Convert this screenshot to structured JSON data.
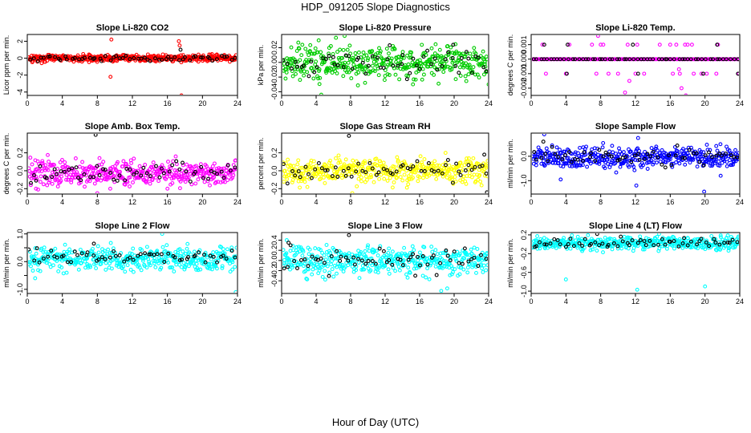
{
  "figure": {
    "title": "HDP_091205  Slope Diagnostics",
    "xlabel": "Hour of Day (UTC)"
  },
  "chart_data": [
    {
      "type": "scatter",
      "title": "Slope Li-820 CO2",
      "ylabel": "Licor ppm per min.",
      "color": "#ff0000",
      "xlim": [
        0,
        24
      ],
      "ylim": [
        -4.4,
        2.8
      ],
      "xticks": [
        0,
        4,
        8,
        12,
        16,
        20,
        24
      ],
      "yticks": [
        -4,
        -2,
        0,
        2
      ],
      "ytick_labels": [
        "-4",
        "-2",
        "0",
        "2"
      ],
      "series_main": {
        "center": 0,
        "spread": 0.2,
        "count": 420
      },
      "series_black": {
        "center": 0,
        "spread": 0.15,
        "count": 60
      },
      "outliers": [
        [
          9.6,
          2.2
        ],
        [
          9.5,
          -2.2
        ],
        [
          17.3,
          2.0
        ],
        [
          17.6,
          -4.4
        ],
        [
          17.4,
          1.5
        ]
      ],
      "black_outliers": [
        [
          17.5,
          1.0
        ]
      ]
    },
    {
      "type": "scatter",
      "title": "Slope Li-820 Pressure",
      "ylabel": "kPa per min.",
      "color": "#00cc00",
      "xlim": [
        0,
        24
      ],
      "ylim": [
        -0.045,
        0.038
      ],
      "xticks": [
        0,
        4,
        8,
        12,
        16,
        20,
        24
      ],
      "yticks": [
        -0.04,
        -0.02,
        0.0,
        0.02
      ],
      "ytick_labels": [
        "-0.04",
        "-0.02",
        "0.00",
        "0.02"
      ],
      "series_main": {
        "center": 0.0,
        "spread": 0.012,
        "count": 420
      },
      "series_black": {
        "center": 0.0,
        "spread": 0.009,
        "count": 60
      },
      "outliers": [
        [
          4.6,
          -0.044
        ],
        [
          7.3,
          0.036
        ],
        [
          4.3,
          0.03
        ],
        [
          24.0,
          -0.03
        ]
      ],
      "black_outliers": [
        [
          19.9,
          0.024
        ]
      ]
    },
    {
      "type": "scatter",
      "title": "Slope Li-820 Temp.",
      "ylabel": "degrees C per min.",
      "color": "#ff00ff",
      "xlim": [
        0,
        24
      ],
      "ylim": [
        -0.0025,
        0.0017
      ],
      "xticks": [
        0,
        4,
        8,
        12,
        16,
        20,
        24
      ],
      "yticks": [
        -0.002,
        -0.001,
        0.0,
        0.001
      ],
      "ytick_labels": [
        "-0.002",
        "-0.001",
        "0.000",
        "0.001"
      ],
      "series_main": {
        "center": 0.0,
        "spread": 0.0,
        "count": 240
      },
      "series_black": {
        "center": 0.0,
        "spread": 0.0,
        "count": 60
      },
      "outliers": [
        [
          7.7,
          0.0016
        ],
        [
          1.3,
          0.001
        ],
        [
          4.4,
          0.001
        ],
        [
          7.0,
          0.001
        ],
        [
          8.0,
          0.001
        ],
        [
          8.3,
          0.001
        ],
        [
          11.1,
          0.001
        ],
        [
          12.2,
          0.001
        ],
        [
          14.8,
          0.001
        ],
        [
          16.0,
          0.001
        ],
        [
          16.7,
          0.001
        ],
        [
          17.7,
          0.001
        ],
        [
          18.0,
          0.001
        ],
        [
          18.5,
          0.001
        ],
        [
          21.5,
          0.001
        ],
        [
          1.7,
          -0.001
        ],
        [
          4.0,
          -0.001
        ],
        [
          7.5,
          -0.001
        ],
        [
          8.9,
          -0.001
        ],
        [
          10.0,
          -0.001
        ],
        [
          12.0,
          -0.001
        ],
        [
          13.0,
          -0.001
        ],
        [
          16.3,
          -0.001
        ],
        [
          17.1,
          -0.001
        ],
        [
          18.7,
          -0.001
        ],
        [
          19.6,
          -0.001
        ],
        [
          20.2,
          -0.001
        ],
        [
          21.3,
          -0.001
        ],
        [
          23.9,
          -0.001
        ],
        [
          11.3,
          -0.0015
        ],
        [
          17.0,
          -0.0007
        ],
        [
          17.3,
          -0.002
        ],
        [
          17.8,
          -0.0025
        ],
        [
          10.8,
          -0.0023
        ]
      ],
      "black_outliers": [
        [
          4.2,
          0.001
        ],
        [
          1.5,
          0.001
        ],
        [
          11.7,
          0.001
        ],
        [
          21.4,
          0.001
        ],
        [
          4.1,
          -0.001
        ],
        [
          12.3,
          -0.001
        ],
        [
          19.8,
          -0.001
        ],
        [
          23.8,
          -0.001
        ]
      ]
    },
    {
      "type": "scatter",
      "title": "Slope Amb. Box Temp.",
      "ylabel": "degrees C per min.",
      "color": "#ff00ff",
      "xlim": [
        0,
        24
      ],
      "ylim": [
        -0.26,
        0.42
      ],
      "xticks": [
        0,
        4,
        8,
        12,
        16,
        20,
        24
      ],
      "yticks": [
        -0.2,
        0.0,
        0.2
      ],
      "ytick_labels": [
        "-0.2",
        "0.0",
        "0.2"
      ],
      "series_main": {
        "center": -0.02,
        "spread": 0.07,
        "count": 420
      },
      "series_black": {
        "center": -0.02,
        "spread": 0.06,
        "count": 60
      },
      "outliers": [
        [
          1.0,
          -0.2
        ],
        [
          16.0,
          -0.2
        ],
        [
          8.0,
          -0.25
        ]
      ],
      "black_outliers": [
        [
          7.8,
          0.4
        ]
      ]
    },
    {
      "type": "scatter",
      "title": "Slope Gas Stream RH",
      "ylabel": "percent per min.",
      "color": "#ffff00",
      "xlim": [
        0,
        24
      ],
      "ylim": [
        -0.26,
        0.42
      ],
      "xticks": [
        0,
        4,
        8,
        12,
        16,
        20,
        24
      ],
      "yticks": [
        -0.2,
        0.0,
        0.2
      ],
      "ytick_labels": [
        "-0.2",
        "0.0",
        "0.2"
      ],
      "series_main": {
        "center": 0.0,
        "spread": 0.07,
        "count": 420
      },
      "series_black": {
        "center": 0.0,
        "spread": 0.06,
        "count": 60
      },
      "outliers": [
        [
          8.2,
          -0.25
        ],
        [
          19.0,
          0.2
        ]
      ],
      "black_outliers": [
        [
          7.8,
          0.39
        ],
        [
          23.8,
          -0.24
        ],
        [
          23.5,
          0.18
        ]
      ]
    },
    {
      "type": "scatter",
      "title": "Slope Sample Flow",
      "ylabel": "ml/min per min.",
      "color": "#0000ff",
      "xlim": [
        0,
        24
      ],
      "ylim": [
        -1.55,
        0.95
      ],
      "xticks": [
        0,
        4,
        8,
        12,
        16,
        20,
        24
      ],
      "yticks": [
        -1.0,
        0.0
      ],
      "ytick_labels": [
        "-1.0",
        "0.0"
      ],
      "series_main": {
        "center": -0.05,
        "spread": 0.22,
        "count": 420
      },
      "series_black": {
        "center": 0.0,
        "spread": 0.18,
        "count": 60
      },
      "outliers": [
        [
          1.5,
          0.9
        ],
        [
          3.4,
          -0.95
        ],
        [
          12.1,
          -1.2
        ],
        [
          19.9,
          -1.45
        ],
        [
          12.3,
          0.75
        ],
        [
          21.8,
          -0.8
        ]
      ],
      "black_outliers": [
        [
          1.4,
          0.6
        ]
      ]
    },
    {
      "type": "scatter",
      "title": "Slope Line 2 Flow",
      "ylabel": "ml/min per min.",
      "color": "#00ffff",
      "xlim": [
        0,
        24
      ],
      "ylim": [
        -1.15,
        1.05
      ],
      "xticks": [
        0,
        4,
        8,
        12,
        16,
        20,
        24
      ],
      "yticks": [
        -1.0,
        -0.5,
        0.0,
        0.5,
        1.0
      ],
      "ytick_labels": [
        "-1.0",
        "",
        "0.0",
        "",
        "1.0"
      ],
      "series_main": {
        "center": 0.1,
        "spread": 0.22,
        "count": 420
      },
      "series_black": {
        "center": 0.15,
        "spread": 0.12,
        "count": 60
      },
      "outliers": [
        [
          15.4,
          1.0
        ],
        [
          23.8,
          -1.1
        ],
        [
          0.9,
          -0.6
        ],
        [
          4.5,
          -0.4
        ]
      ],
      "black_outliers": [
        [
          7.6,
          0.65
        ]
      ]
    },
    {
      "type": "scatter",
      "title": "Slope Line 3 Flow",
      "ylabel": "ml/min per min.",
      "color": "#00ffff",
      "xlim": [
        0,
        24
      ],
      "ylim": [
        -0.65,
        0.55
      ],
      "xticks": [
        0,
        4,
        8,
        12,
        16,
        20,
        24
      ],
      "yticks": [
        -0.4,
        -0.2,
        0.0,
        0.2,
        0.4
      ],
      "ytick_labels": [
        "-0.4",
        "-0.2",
        "0.0",
        "0.2",
        "0.4"
      ],
      "series_main": {
        "center": 0.0,
        "spread": 0.14,
        "count": 420
      },
      "series_black": {
        "center": 0.0,
        "spread": 0.12,
        "count": 60
      },
      "outliers": [
        [
          18.5,
          -0.6
        ],
        [
          19.2,
          -0.55
        ],
        [
          0.6,
          0.4
        ]
      ],
      "black_outliers": [
        [
          7.8,
          0.5
        ],
        [
          15.5,
          -0.3
        ],
        [
          0.8,
          0.35
        ]
      ]
    },
    {
      "type": "scatter",
      "title": "Slope Line 4 (LT) Flow",
      "ylabel": "ml/min per min.",
      "color": "#00ffff",
      "xlim": [
        0,
        24
      ],
      "ylim": [
        -1.05,
        0.25
      ],
      "xticks": [
        0,
        4,
        8,
        12,
        16,
        20,
        24
      ],
      "yticks": [
        -1.0,
        -0.6,
        -0.2,
        0.2
      ],
      "ytick_labels": [
        "-1.0",
        "-0.6",
        "-0.2",
        "0.2"
      ],
      "series_main": {
        "center": 0.02,
        "spread": 0.07,
        "count": 420
      },
      "series_black": {
        "center": 0.02,
        "spread": 0.05,
        "count": 60
      },
      "outliers": [
        [
          4.0,
          -0.75
        ],
        [
          12.2,
          -0.97
        ],
        [
          20.0,
          -0.9
        ]
      ],
      "black_outliers": [
        [
          7.6,
          0.22
        ]
      ]
    }
  ]
}
